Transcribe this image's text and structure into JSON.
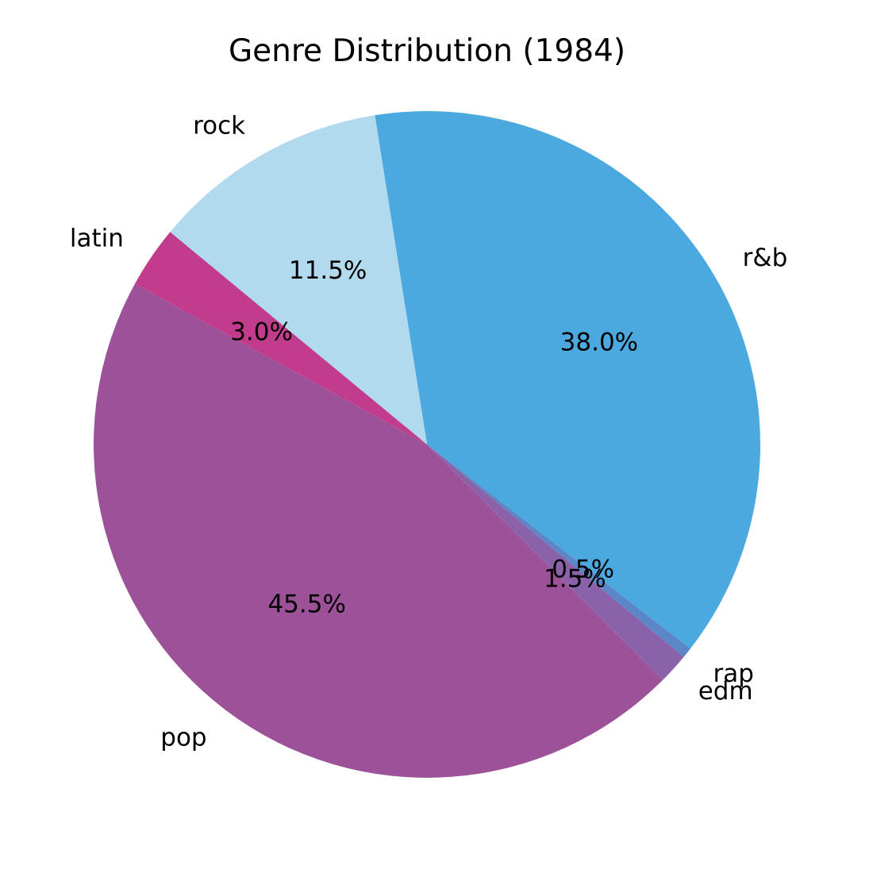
{
  "chart_data": {
    "type": "pie",
    "title": "Genre Distribution (1984)",
    "slices": [
      {
        "label": "r&b",
        "value": 38.0,
        "pct_text": "38.0%",
        "color": "#4BA9DF"
      },
      {
        "label": "rap",
        "value": 0.5,
        "pct_text": "0.5%",
        "color": "#5B86C7"
      },
      {
        "label": "edm",
        "value": 1.5,
        "pct_text": "1.5%",
        "color": "#8A62A9"
      },
      {
        "label": "pop",
        "value": 45.5,
        "pct_text": "45.5%",
        "color": "#9C5198"
      },
      {
        "label": "latin",
        "value": 3.0,
        "pct_text": "3.0%",
        "color": "#C13C8C"
      },
      {
        "label": "rock",
        "value": 11.5,
        "pct_text": "11.5%",
        "color": "#B2DAEF"
      }
    ],
    "start_angle_deg": 99,
    "direction": "clockwise",
    "legend": "none"
  }
}
